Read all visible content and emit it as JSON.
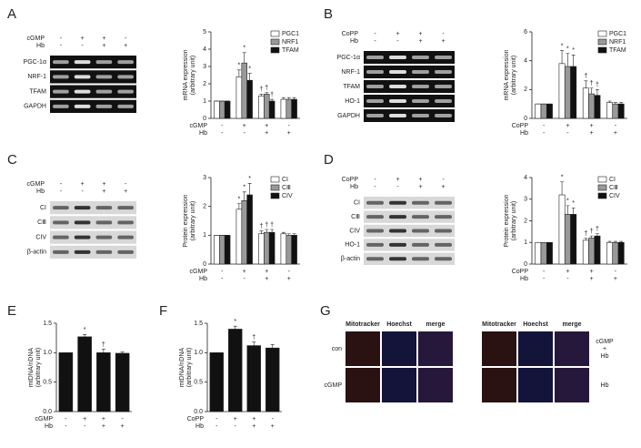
{
  "panel_labels": [
    "A",
    "B",
    "C",
    "D",
    "E",
    "F",
    "G"
  ],
  "blots": [
    {
      "conditions": [
        {
          "name": "cGMP",
          "values": [
            "-",
            "+",
            "+",
            "-"
          ]
        },
        {
          "name": "Hb",
          "values": [
            "-",
            "-",
            "+",
            "+"
          ]
        }
      ],
      "rows": [
        "PGC-1α",
        "NRF-1",
        "TFAM",
        "GAPDH"
      ]
    },
    {
      "conditions": [
        {
          "name": "CoPP",
          "values": [
            "-",
            "+",
            "+",
            "-"
          ]
        },
        {
          "name": "Hb",
          "values": [
            "-",
            "-",
            "+",
            "+"
          ]
        }
      ],
      "rows": [
        "PGC-1α",
        "NRF-1",
        "TFAM",
        "HO-1",
        "GAPDH"
      ]
    },
    {
      "conditions": [
        {
          "name": "cGMP",
          "values": [
            "-",
            "+",
            "+",
            "-"
          ]
        },
        {
          "name": "Hb",
          "values": [
            "-",
            "-",
            "+",
            "+"
          ]
        }
      ],
      "rows": [
        "CI",
        "CⅢ",
        "CIV",
        "β-actin"
      ]
    },
    {
      "conditions": [
        {
          "name": "CoPP",
          "values": [
            "-",
            "+",
            "+",
            "-"
          ]
        },
        {
          "name": "Hb",
          "values": [
            "-",
            "-",
            "+",
            "+"
          ]
        }
      ],
      "rows": [
        "CI",
        "CⅢ",
        "CIV",
        "HO-1",
        "β-actin"
      ]
    }
  ],
  "imaging": {
    "column_headers": [
      "Mitotracker",
      "Hoechst",
      "merge",
      "Mitotracker",
      "Hoechst",
      "merge"
    ],
    "row_labels": [
      "con",
      "cGMP"
    ],
    "right_labels": [
      [
        "cGMP",
        "+",
        "Hb"
      ],
      [
        "Hb"
      ]
    ]
  },
  "chart_data": [
    {
      "type": "bar",
      "ylabel": [
        "mRNA expression",
        "(arbitrary unit)"
      ],
      "ylim": [
        0,
        5
      ],
      "yticks": [
        0,
        1,
        2,
        3,
        4,
        5
      ],
      "conditions": [
        {
          "name": "cGMP",
          "values": [
            "-",
            "+",
            "+",
            "-"
          ]
        },
        {
          "name": "Hb",
          "values": [
            "-",
            "-",
            "+",
            "+"
          ]
        }
      ],
      "series": [
        {
          "name": "PGC1",
          "color": "#ffffff",
          "values": [
            1,
            2.4,
            1.3,
            1.1
          ],
          "errors": [
            0,
            0.4,
            0.1,
            0.1
          ]
        },
        {
          "name": "NRF1",
          "color": "#999999",
          "values": [
            1,
            3.2,
            1.4,
            1.1
          ],
          "errors": [
            0,
            0.6,
            0.1,
            0.1
          ]
        },
        {
          "name": "TFAM",
          "color": "#111111",
          "values": [
            1,
            2.2,
            1.0,
            1.1
          ],
          "errors": [
            0,
            0.4,
            0.1,
            0.1
          ]
        }
      ],
      "annotations": [
        {
          "text": "*",
          "series": 0,
          "category": 1
        },
        {
          "text": "*",
          "series": 1,
          "category": 1
        },
        {
          "text": "*",
          "series": 2,
          "category": 1
        },
        {
          "text": "†",
          "series": 0,
          "category": 2
        },
        {
          "text": "†",
          "series": 1,
          "category": 2
        },
        {
          "text": "†",
          "series": 2,
          "category": 2
        }
      ]
    },
    {
      "type": "bar",
      "ylabel": [
        "mRNA expression",
        "(arbitrary unit)"
      ],
      "ylim": [
        0,
        6
      ],
      "yticks": [
        0,
        2,
        4,
        6
      ],
      "conditions": [
        {
          "name": "CoPP",
          "values": [
            "-",
            "+",
            "+",
            "-"
          ]
        },
        {
          "name": "Hb",
          "values": [
            "-",
            "-",
            "+",
            "+"
          ]
        }
      ],
      "series": [
        {
          "name": "PGC1",
          "color": "#ffffff",
          "values": [
            1,
            3.8,
            2.1,
            1.1
          ],
          "errors": [
            0,
            0.9,
            0.5,
            0.1
          ]
        },
        {
          "name": "NRF1",
          "color": "#999999",
          "values": [
            1,
            3.6,
            1.7,
            1.0
          ],
          "errors": [
            0,
            0.9,
            0.4,
            0.1
          ]
        },
        {
          "name": "TFAM",
          "color": "#111111",
          "values": [
            1,
            3.6,
            1.6,
            1.0
          ],
          "errors": [
            0,
            0.8,
            0.4,
            0.1
          ]
        }
      ],
      "annotations": [
        {
          "text": "*",
          "series": 0,
          "category": 1
        },
        {
          "text": "*",
          "series": 1,
          "category": 1
        },
        {
          "text": "*",
          "series": 2,
          "category": 1
        },
        {
          "text": "†",
          "series": 0,
          "category": 2
        },
        {
          "text": "†",
          "series": 1,
          "category": 2
        },
        {
          "text": "†",
          "series": 2,
          "category": 2
        }
      ]
    },
    {
      "type": "bar",
      "ylabel": [
        "Protein expression",
        "(arbitrary unit)"
      ],
      "ylim": [
        0,
        3
      ],
      "yticks": [
        0,
        1,
        2,
        3
      ],
      "conditions": [
        {
          "name": "cGMP",
          "values": [
            "-",
            "+",
            "+",
            "-"
          ]
        },
        {
          "name": "Hb",
          "values": [
            "-",
            "-",
            "+",
            "+"
          ]
        }
      ],
      "series": [
        {
          "name": "CI",
          "color": "#ffffff",
          "values": [
            1,
            1.9,
            1.05,
            1.05
          ],
          "errors": [
            0,
            0.2,
            0.1,
            0.05
          ]
        },
        {
          "name": "CⅢ",
          "color": "#999999",
          "values": [
            1,
            2.2,
            1.1,
            1.0
          ],
          "errors": [
            0,
            0.3,
            0.1,
            0.05
          ]
        },
        {
          "name": "CIV",
          "color": "#111111",
          "values": [
            1,
            2.4,
            1.1,
            1.0
          ],
          "errors": [
            0,
            0.4,
            0.1,
            0.05
          ]
        }
      ],
      "annotations": [
        {
          "text": "*",
          "series": 0,
          "category": 1
        },
        {
          "text": "*",
          "series": 1,
          "category": 1
        },
        {
          "text": "*",
          "series": 2,
          "category": 1
        },
        {
          "text": "†",
          "series": 0,
          "category": 2
        },
        {
          "text": "†",
          "series": 1,
          "category": 2
        },
        {
          "text": "†",
          "series": 2,
          "category": 2
        }
      ]
    },
    {
      "type": "bar",
      "ylabel": [
        "Protein expression",
        "(arbitrary unit)"
      ],
      "ylim": [
        0,
        4
      ],
      "yticks": [
        0,
        1,
        2,
        3,
        4
      ],
      "conditions": [
        {
          "name": "CoPP",
          "values": [
            "-",
            "+",
            "+",
            "-"
          ]
        },
        {
          "name": "Hb",
          "values": [
            "-",
            "-",
            "+",
            "+"
          ]
        }
      ],
      "series": [
        {
          "name": "CI",
          "color": "#ffffff",
          "values": [
            1,
            3.2,
            1.1,
            1.0
          ],
          "errors": [
            0,
            0.6,
            0.1,
            0.05
          ]
        },
        {
          "name": "CⅢ",
          "color": "#999999",
          "values": [
            1,
            2.3,
            1.2,
            1.0
          ],
          "errors": [
            0,
            0.4,
            0.1,
            0.05
          ]
        },
        {
          "name": "CIV",
          "color": "#111111",
          "values": [
            1,
            2.3,
            1.3,
            1.0
          ],
          "errors": [
            0,
            0.3,
            0.1,
            0.05
          ]
        }
      ],
      "annotations": [
        {
          "text": "*",
          "series": 0,
          "category": 1
        },
        {
          "text": "*",
          "series": 1,
          "category": 1
        },
        {
          "text": "*",
          "series": 2,
          "category": 1
        },
        {
          "text": "†",
          "series": 0,
          "category": 2
        },
        {
          "text": "†",
          "series": 1,
          "category": 2
        },
        {
          "text": "†",
          "series": 2,
          "category": 2
        }
      ]
    },
    {
      "type": "bar",
      "ylabel": [
        "mtDNA/nDNA",
        "(arbitrary unit)"
      ],
      "ylim": [
        0,
        1.5
      ],
      "yticks": [
        {
          "value": 0,
          "label": "0.0"
        },
        0.5,
        {
          "value": 1,
          "label": "1.0"
        },
        1.5
      ],
      "conditions": [
        {
          "name": "cGMP",
          "values": [
            "-",
            "+",
            "+",
            "-"
          ]
        },
        {
          "name": "Hb",
          "values": [
            "-",
            "-",
            "+",
            "+"
          ]
        }
      ],
      "series": [
        {
          "name": "mtDNA/nDNA",
          "color": "#111111",
          "values": [
            1.0,
            1.27,
            1.0,
            0.99
          ],
          "errors": [
            0,
            0.04,
            0.06,
            0.02
          ]
        }
      ],
      "annotations": [
        {
          "text": "*",
          "series": 0,
          "category": 1
        },
        {
          "text": "†",
          "series": 0,
          "category": 2
        }
      ]
    },
    {
      "type": "bar",
      "ylabel": [
        "mtDNA/nDNA",
        "(arbitrary unit)"
      ],
      "ylim": [
        0,
        1.5
      ],
      "yticks": [
        {
          "value": 0,
          "label": "0.0"
        },
        0.5,
        {
          "value": 1,
          "label": "1.0"
        },
        1.5
      ],
      "conditions": [
        {
          "name": "CoPP",
          "values": [
            "-",
            "+",
            "+",
            "-"
          ]
        },
        {
          "name": "Hb",
          "values": [
            "-",
            "-",
            "+",
            "+"
          ]
        }
      ],
      "series": [
        {
          "name": "mtDNA/nDNA",
          "color": "#111111",
          "values": [
            1.0,
            1.4,
            1.12,
            1.08
          ],
          "errors": [
            0,
            0.05,
            0.06,
            0.06
          ]
        }
      ],
      "annotations": [
        {
          "text": "*",
          "series": 0,
          "category": 1
        },
        {
          "text": "†",
          "series": 0,
          "category": 2
        }
      ]
    }
  ]
}
